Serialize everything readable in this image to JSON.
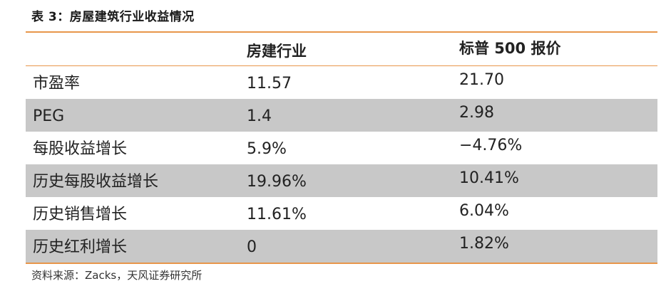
{
  "caption": "表 3：房屋建筑行业收益情况",
  "table": {
    "headers": [
      "",
      "房建行业",
      "标普 500 报价"
    ],
    "rows": [
      {
        "label": "市盈率",
        "industry": "11.57",
        "sp500": "21.70"
      },
      {
        "label": "PEG",
        "industry": "1.4",
        "sp500": "2.98"
      },
      {
        "label": "每股收益增长",
        "industry": "5.9%",
        "sp500": "−4.76%"
      },
      {
        "label": "历史每股收益增长",
        "industry": "19.96%",
        "sp500": "10.41%"
      },
      {
        "label": "历史销售增长",
        "industry": "11.61%",
        "sp500": "6.04%"
      },
      {
        "label": "历史红利增长",
        "industry": "0",
        "sp500": "1.82%"
      }
    ]
  },
  "colors": {
    "rule": "#e8964a",
    "shade": "#c8c8c8"
  },
  "footnote": "资料来源：Zacks，天风证券研究所"
}
